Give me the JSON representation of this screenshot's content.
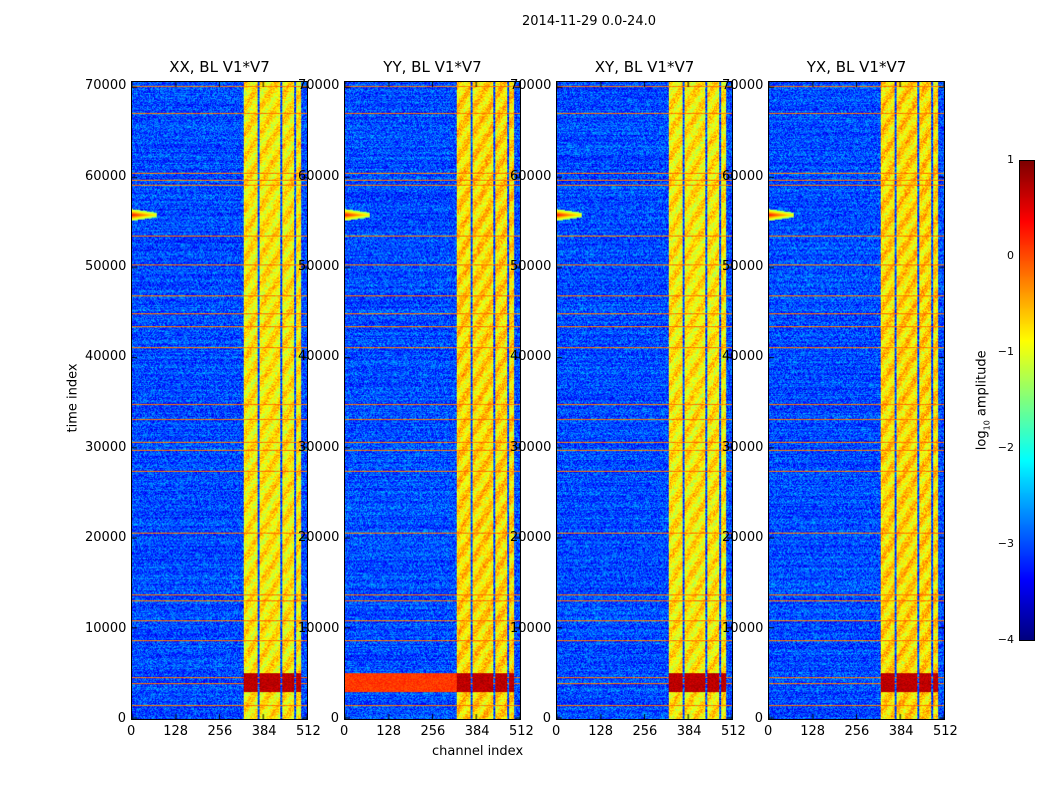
{
  "suptitle": "2014-11-29 0.0-24.0",
  "chart_data": {
    "type": "heatmap",
    "xlabel": "channel index",
    "ylabel": "time index",
    "xlim": [
      0,
      512
    ],
    "ylim": [
      0,
      70700
    ],
    "xticks": [
      "0",
      "128",
      "256",
      "384",
      "512"
    ],
    "xtick_values": [
      0,
      128,
      256,
      384,
      512
    ],
    "yticks": [
      "0",
      "10000",
      "20000",
      "30000",
      "40000",
      "50000",
      "60000",
      "70000"
    ],
    "ytick_values": [
      0,
      10000,
      20000,
      30000,
      40000,
      50000,
      60000,
      70000
    ],
    "panels": [
      {
        "title": "XX, BL V1*V7"
      },
      {
        "title": "YY, BL V1*V7"
      },
      {
        "title": "XY, BL V1*V7"
      },
      {
        "title": "YX, BL V1*V7"
      }
    ],
    "colorbar": {
      "label": "log10 amplitude",
      "label_main": "log",
      "label_sub": "10",
      "label_rest": " amplitude",
      "colormap": "jet",
      "range": [
        -4,
        1
      ],
      "ticks": [
        "1",
        "0",
        "−1",
        "−2",
        "−3",
        "−4"
      ],
      "tick_values": [
        1,
        0,
        -1,
        -2,
        -3,
        -4
      ]
    },
    "features": {
      "background_level": -3.0,
      "bright_channel_bands": [
        [
          324,
          366
        ],
        [
          372,
          432
        ],
        [
          438,
          472
        ],
        [
          478,
          492
        ]
      ],
      "band_level": -0.8,
      "rfi_time_rows": [
        70300,
        67230,
        60580,
        59900,
        59250,
        53700,
        50500,
        47070,
        45080,
        43640,
        41310,
        35000,
        33340,
        30790,
        29900,
        27580,
        20710,
        13840,
        13180,
        10960,
        8750,
        4650,
        3990,
        1550
      ],
      "rfi_level": -0.2,
      "strong_rfi_time_range": [
        3000,
        5200
      ],
      "strong_rfi_level": 0.7,
      "burst_time": 56000,
      "burst_channels": [
        0,
        70
      ]
    }
  }
}
